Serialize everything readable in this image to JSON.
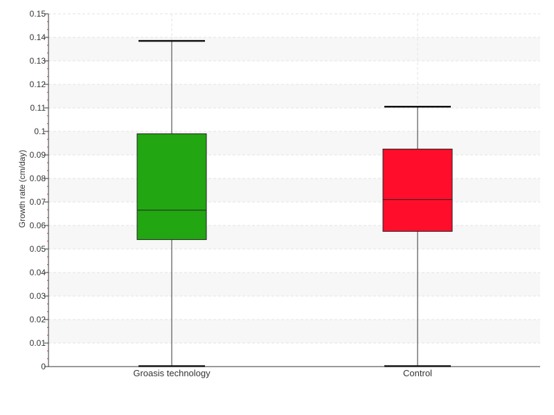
{
  "chart_data": {
    "type": "box",
    "ylabel": "Growth rate (cm/day)",
    "ylim": [
      0,
      0.15
    ],
    "yticks": [
      "0",
      "0.01",
      "0.02",
      "0.03",
      "0.04",
      "0.05",
      "0.06",
      "0.07",
      "0.08",
      "0.09",
      "0.1",
      "0.11",
      "0.12",
      "0.13",
      "0.14",
      "0.15"
    ],
    "grid": true,
    "categories": [
      "Groasis technology",
      "Control"
    ],
    "boxes": [
      {
        "name": "Groasis technology",
        "min": 0.0002,
        "q1": 0.054,
        "median": 0.0665,
        "q3": 0.099,
        "max": 0.1385,
        "color": "#22a612"
      },
      {
        "name": "Control",
        "min": 0.0002,
        "q1": 0.0575,
        "median": 0.071,
        "q3": 0.0925,
        "max": 0.1105,
        "color": "#ff0d2a"
      }
    ]
  }
}
